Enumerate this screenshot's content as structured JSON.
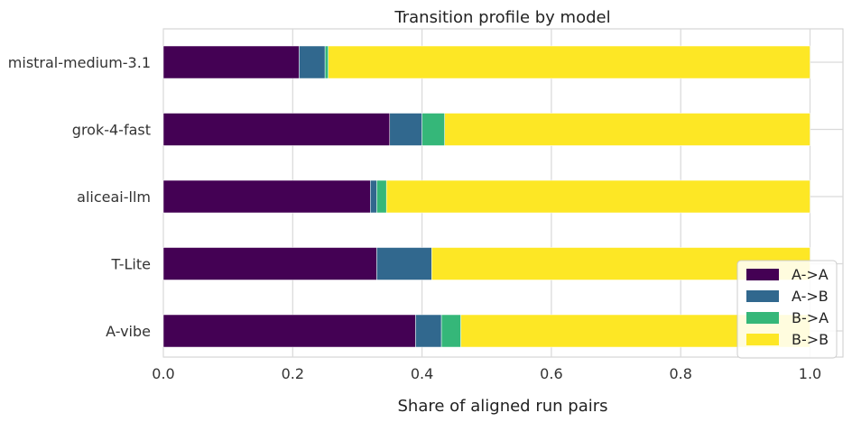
{
  "chart_data": {
    "type": "bar",
    "orientation": "horizontal",
    "stacked": true,
    "title": "Transition profile by model",
    "xlabel": "Share of aligned run pairs",
    "ylabel": "",
    "xlim": [
      0,
      1.0
    ],
    "xticks": [
      "0.0",
      "0.2",
      "0.4",
      "0.6",
      "0.8",
      "1.0"
    ],
    "xtick_values": [
      0,
      0.2,
      0.4,
      0.6,
      0.8,
      1.0
    ],
    "grid": true,
    "legend_position": "lower-right",
    "categories": [
      "mistral-medium-3.1",
      "grok-4-fast",
      "aliceai-llm",
      "T-Lite",
      "A-vibe"
    ],
    "series": [
      {
        "name": "A->A",
        "color": "#440154",
        "values": [
          0.21,
          0.35,
          0.32,
          0.33,
          0.39
        ]
      },
      {
        "name": "A->B",
        "color": "#31688e",
        "values": [
          0.04,
          0.05,
          0.01,
          0.085,
          0.04
        ]
      },
      {
        "name": "B->A",
        "color": "#35b779",
        "values": [
          0.005,
          0.035,
          0.015,
          0.0,
          0.03
        ]
      },
      {
        "name": "B->B",
        "color": "#fde725",
        "values": [
          0.745,
          0.565,
          0.655,
          0.585,
          0.54
        ]
      }
    ]
  }
}
